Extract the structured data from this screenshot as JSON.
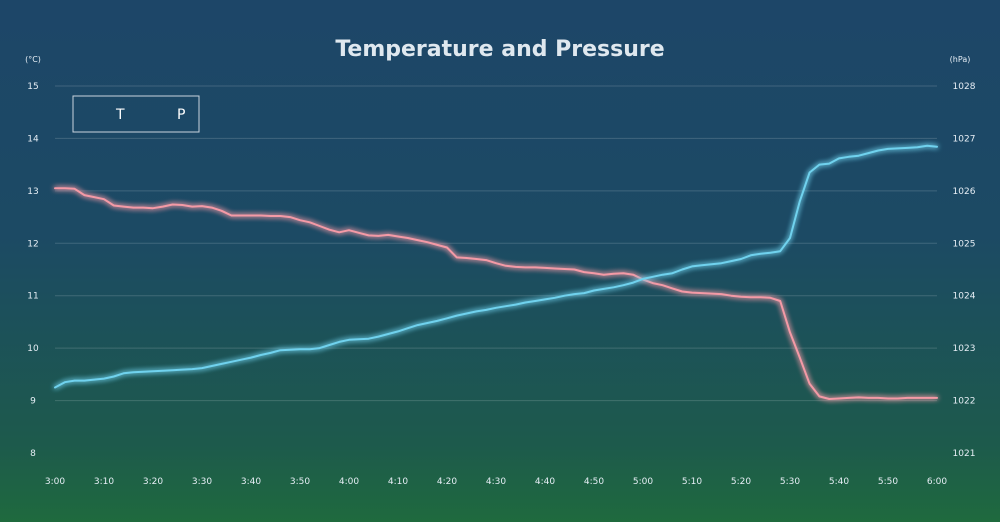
{
  "chart_data": {
    "type": "line",
    "title": "Temperature and Pressure",
    "left_axis": {
      "unit": "(°C)",
      "ylim": [
        8,
        15
      ],
      "ticks": [
        "8",
        "9",
        "10",
        "11",
        "12",
        "13",
        "14",
        "15"
      ]
    },
    "right_axis": {
      "unit": "(hPa)",
      "ylim": [
        1021,
        1028
      ],
      "ticks": [
        "1021",
        "1022",
        "1023",
        "1024",
        "1025",
        "1026",
        "1027",
        "1028"
      ]
    },
    "x_ticks": [
      "3:00",
      "3:10",
      "3:20",
      "3:30",
      "3:40",
      "3:50",
      "4:00",
      "4:10",
      "4:20",
      "4:30",
      "4:40",
      "4:50",
      "5:00",
      "5:10",
      "5:20",
      "5:30",
      "5:40",
      "5:50",
      "6:00"
    ],
    "grid": true,
    "legend": {
      "position": "top-left"
    },
    "x": [
      "3:00",
      "3:02",
      "3:04",
      "3:06",
      "3:08",
      "3:10",
      "3:12",
      "3:14",
      "3:16",
      "3:18",
      "3:20",
      "3:22",
      "3:24",
      "3:26",
      "3:28",
      "3:30",
      "3:32",
      "3:34",
      "3:36",
      "3:38",
      "3:40",
      "3:42",
      "3:44",
      "3:46",
      "3:48",
      "3:50",
      "3:52",
      "3:54",
      "3:56",
      "3:58",
      "4:00",
      "4:02",
      "4:04",
      "4:06",
      "4:08",
      "4:10",
      "4:12",
      "4:14",
      "4:16",
      "4:18",
      "4:20",
      "4:22",
      "4:24",
      "4:26",
      "4:28",
      "4:30",
      "4:32",
      "4:34",
      "4:36",
      "4:38",
      "4:40",
      "4:42",
      "4:44",
      "4:46",
      "4:48",
      "4:50",
      "4:52",
      "4:54",
      "4:56",
      "4:58",
      "5:00",
      "5:02",
      "5:04",
      "5:06",
      "5:08",
      "5:10",
      "5:12",
      "5:14",
      "5:16",
      "5:18",
      "5:20",
      "5:22",
      "5:24",
      "5:26",
      "5:28",
      "5:30",
      "5:32",
      "5:34",
      "5:36",
      "5:38",
      "5:40",
      "5:42",
      "5:44",
      "5:46",
      "5:48",
      "5:50",
      "5:52",
      "5:54",
      "5:56",
      "5:58",
      "6:00"
    ],
    "series": [
      {
        "name": "T",
        "axis": "left",
        "color": "#f49aa6",
        "values": [
          13.05,
          13.05,
          13.04,
          12.92,
          12.88,
          12.84,
          12.72,
          12.7,
          12.68,
          12.68,
          12.67,
          12.7,
          12.74,
          12.73,
          12.7,
          12.71,
          12.68,
          12.62,
          12.53,
          12.53,
          12.53,
          12.53,
          12.52,
          12.52,
          12.5,
          12.44,
          12.4,
          12.33,
          12.26,
          12.21,
          12.25,
          12.2,
          12.15,
          12.14,
          12.16,
          12.13,
          12.1,
          12.06,
          12.02,
          11.97,
          11.92,
          11.73,
          11.72,
          11.7,
          11.68,
          11.62,
          11.57,
          11.55,
          11.54,
          11.54,
          11.53,
          11.52,
          11.51,
          11.5,
          11.45,
          11.43,
          11.4,
          11.42,
          11.43,
          11.4,
          11.31,
          11.24,
          11.2,
          11.14,
          11.08,
          11.06,
          11.05,
          11.04,
          11.03,
          11.0,
          10.98,
          10.97,
          10.97,
          10.96,
          10.9,
          10.3,
          9.82,
          9.32,
          9.08,
          9.03,
          9.04,
          9.05,
          9.06,
          9.05,
          9.05,
          9.04,
          9.04,
          9.05,
          9.05,
          9.05,
          9.05
        ]
      },
      {
        "name": "P",
        "axis": "right",
        "color": "#6fd2ee",
        "values": [
          1022.25,
          1022.35,
          1022.38,
          1022.38,
          1022.4,
          1022.42,
          1022.46,
          1022.52,
          1022.54,
          1022.55,
          1022.56,
          1022.57,
          1022.58,
          1022.59,
          1022.6,
          1022.62,
          1022.66,
          1022.7,
          1022.74,
          1022.78,
          1022.82,
          1022.87,
          1022.91,
          1022.96,
          1022.97,
          1022.98,
          1022.98,
          1023.0,
          1023.06,
          1023.12,
          1023.16,
          1023.17,
          1023.18,
          1023.22,
          1023.27,
          1023.32,
          1023.38,
          1023.44,
          1023.48,
          1023.52,
          1023.57,
          1023.62,
          1023.66,
          1023.7,
          1023.73,
          1023.77,
          1023.8,
          1023.83,
          1023.87,
          1023.9,
          1023.93,
          1023.96,
          1024.0,
          1024.03,
          1024.05,
          1024.1,
          1024.13,
          1024.16,
          1024.2,
          1024.25,
          1024.32,
          1024.36,
          1024.4,
          1024.43,
          1024.5,
          1024.56,
          1024.58,
          1024.6,
          1024.62,
          1024.66,
          1024.7,
          1024.77,
          1024.8,
          1024.82,
          1024.85,
          1025.1,
          1025.8,
          1026.35,
          1026.5,
          1026.52,
          1026.62,
          1026.65,
          1026.67,
          1026.72,
          1026.77,
          1026.8,
          1026.81,
          1026.82,
          1026.83,
          1026.86,
          1026.84
        ]
      }
    ]
  }
}
